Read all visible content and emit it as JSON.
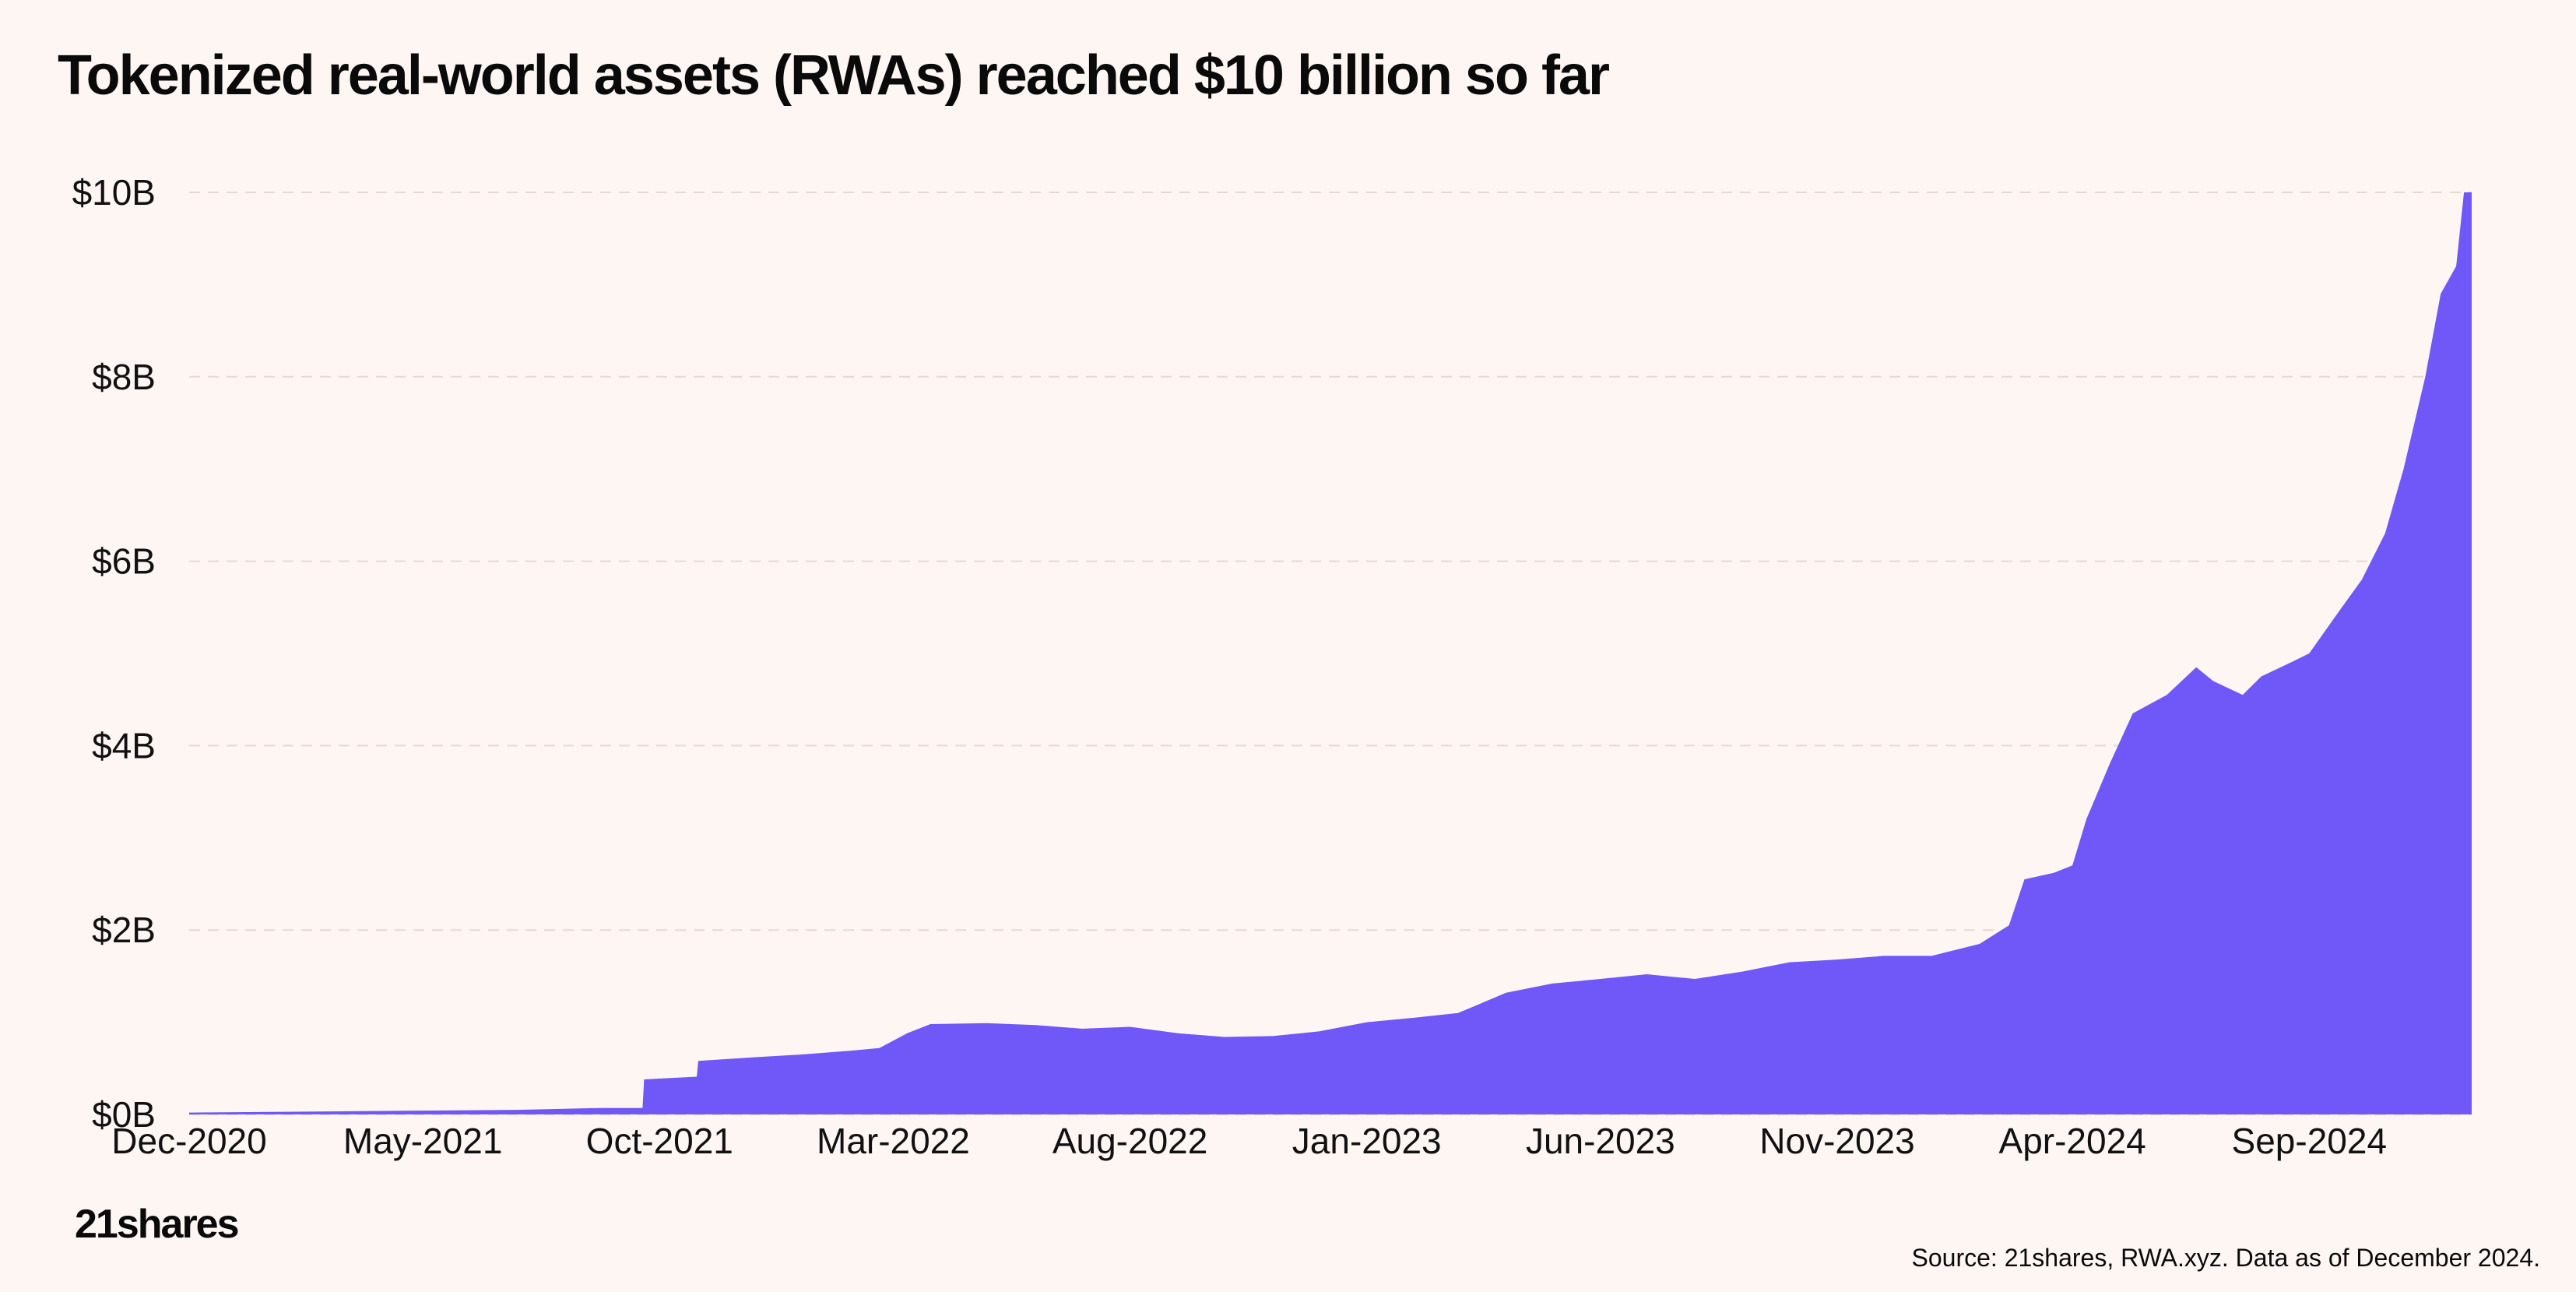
{
  "title": "Tokenized real-world assets (RWAs) reached $10 billion so far",
  "logo_text": "21shares",
  "source_note": "Source: 21shares, RWA.xyz. Data as of December 2024.",
  "colors": {
    "background": "#fdf6f3",
    "area_fill": "#7057f7",
    "gridline": "#e6d9d3",
    "text": "#0a0a0a"
  },
  "chart_data": {
    "type": "area",
    "y_ticks": [
      "$0B",
      "$2B",
      "$4B",
      "$6B",
      "$8B",
      "$10B"
    ],
    "x_ticks": [
      "Dec-2020",
      "May-2021",
      "Oct-2021",
      "Mar-2022",
      "Aug-2022",
      "Jan-2023",
      "Jun-2023",
      "Nov-2023",
      "Apr-2024",
      "Sep-2024"
    ],
    "ylim_billions": [
      0,
      10
    ],
    "xlim": [
      "2020-12-01",
      "2024-12-15"
    ],
    "grid": "horizontal dashed",
    "legend": "none",
    "series": [
      {
        "unit": "billion USD",
        "points": [
          [
            "2020-12-01",
            0.02
          ],
          [
            "2021-02-15",
            0.03
          ],
          [
            "2021-04-20",
            0.04
          ],
          [
            "2021-07-01",
            0.05
          ],
          [
            "2021-08-25",
            0.07
          ],
          [
            "2021-09-20",
            0.07
          ],
          [
            "2021-09-21",
            0.38
          ],
          [
            "2021-10-25",
            0.41
          ],
          [
            "2021-10-26",
            0.58
          ],
          [
            "2021-12-01",
            0.62
          ],
          [
            "2022-01-01",
            0.65
          ],
          [
            "2022-02-01",
            0.69
          ],
          [
            "2022-02-20",
            0.72
          ],
          [
            "2022-03-10",
            0.88
          ],
          [
            "2022-03-25",
            0.98
          ],
          [
            "2022-05-01",
            0.99
          ],
          [
            "2022-06-01",
            0.97
          ],
          [
            "2022-07-01",
            0.93
          ],
          [
            "2022-08-01",
            0.95
          ],
          [
            "2022-09-01",
            0.88
          ],
          [
            "2022-10-01",
            0.84
          ],
          [
            "2022-11-01",
            0.85
          ],
          [
            "2022-12-01",
            0.9
          ],
          [
            "2023-01-01",
            1.0
          ],
          [
            "2023-02-01",
            1.05
          ],
          [
            "2023-03-01",
            1.1
          ],
          [
            "2023-04-01",
            1.32
          ],
          [
            "2023-05-01",
            1.42
          ],
          [
            "2023-06-01",
            1.47
          ],
          [
            "2023-07-01",
            1.52
          ],
          [
            "2023-08-01",
            1.47
          ],
          [
            "2023-09-01",
            1.55
          ],
          [
            "2023-10-01",
            1.65
          ],
          [
            "2023-11-01",
            1.68
          ],
          [
            "2023-12-01",
            1.72
          ],
          [
            "2024-01-01",
            1.72
          ],
          [
            "2024-02-01",
            1.85
          ],
          [
            "2024-02-20",
            2.05
          ],
          [
            "2024-03-01",
            2.55
          ],
          [
            "2024-03-20",
            2.62
          ],
          [
            "2024-04-01",
            2.7
          ],
          [
            "2024-04-10",
            3.2
          ],
          [
            "2024-04-25",
            3.8
          ],
          [
            "2024-05-10",
            4.35
          ],
          [
            "2024-06-01",
            4.55
          ],
          [
            "2024-06-20",
            4.85
          ],
          [
            "2024-07-01",
            4.7
          ],
          [
            "2024-07-20",
            4.55
          ],
          [
            "2024-08-01",
            4.75
          ],
          [
            "2024-08-20",
            4.9
          ],
          [
            "2024-09-01",
            5.0
          ],
          [
            "2024-09-20",
            5.45
          ],
          [
            "2024-10-05",
            5.8
          ],
          [
            "2024-10-20",
            6.3
          ],
          [
            "2024-11-01",
            7.0
          ],
          [
            "2024-11-15",
            8.0
          ],
          [
            "2024-11-25",
            8.9
          ],
          [
            "2024-12-05",
            9.2
          ],
          [
            "2024-12-10",
            10.0
          ],
          [
            "2024-12-15",
            10.0
          ]
        ]
      }
    ]
  }
}
